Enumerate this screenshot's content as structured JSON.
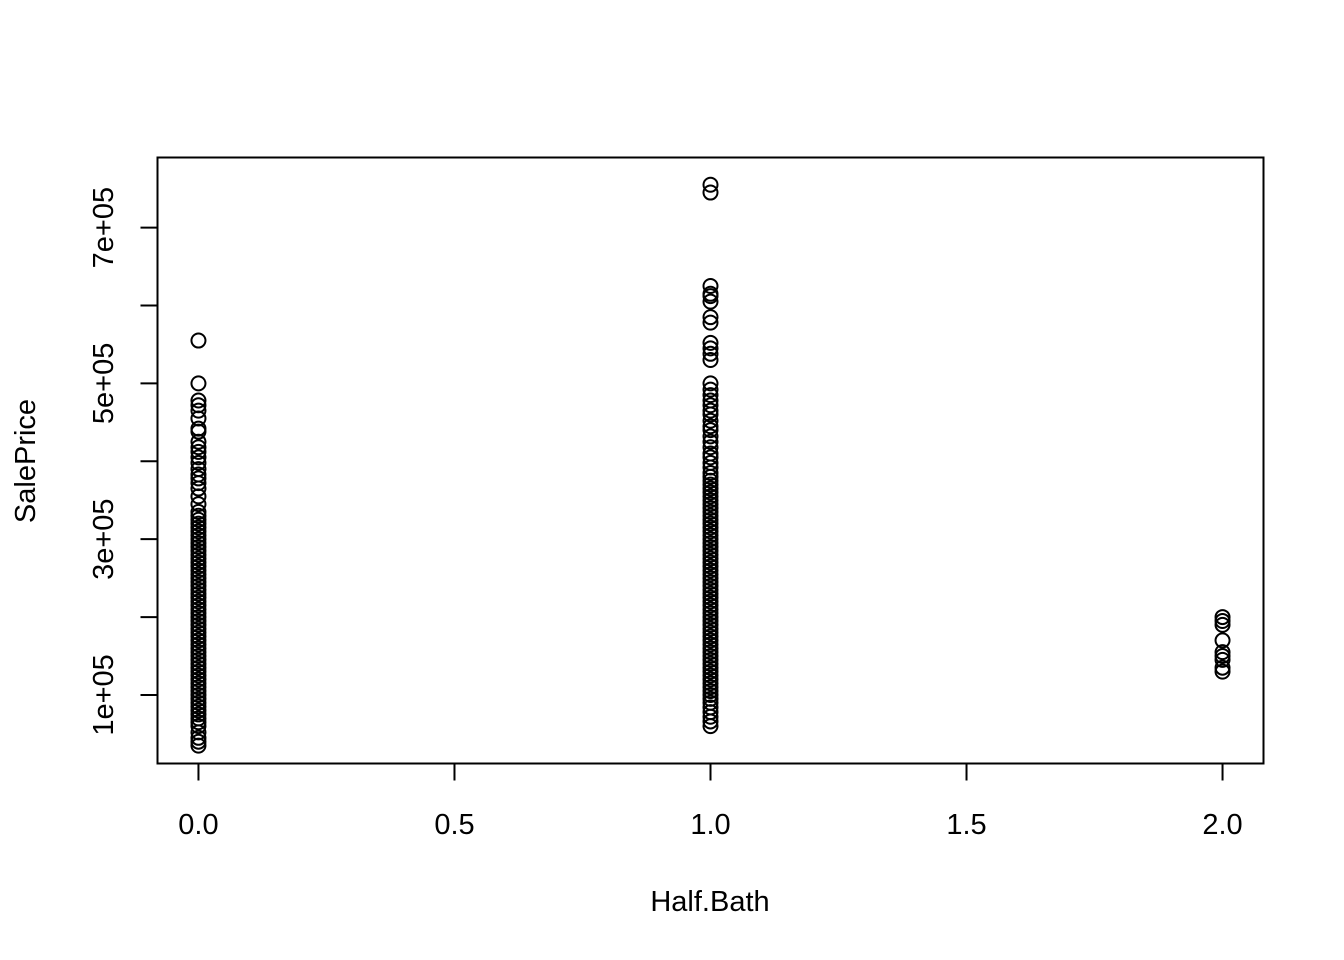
{
  "chart_data": {
    "type": "scatter",
    "title": "",
    "xlabel": "Half.Bath",
    "ylabel": "SalePrice",
    "xlim": [
      -0.08,
      2.08
    ],
    "ylim": [
      12000,
      790000
    ],
    "x_ticks": [
      0.0,
      0.5,
      1.0,
      1.5,
      2.0
    ],
    "x_tick_labels": [
      "0.0",
      "0.5",
      "1.0",
      "1.5",
      "2.0"
    ],
    "y_ticks": [
      100000,
      200000,
      300000,
      400000,
      500000,
      600000,
      700000
    ],
    "y_tick_labels": [
      "1e+05",
      "",
      "3e+05",
      "",
      "5e+05",
      "",
      "7e+05"
    ],
    "grid": false,
    "legend": "none",
    "series": [
      {
        "x_value": 0,
        "y_values": [
          35000,
          40000,
          45000,
          52000,
          60000,
          65000,
          70000,
          75000,
          80000,
          85000,
          90000,
          95000,
          100000,
          105000,
          110000,
          115000,
          120000,
          125000,
          130000,
          135000,
          140000,
          145000,
          150000,
          155000,
          160000,
          165000,
          170000,
          175000,
          180000,
          185000,
          190000,
          195000,
          200000,
          205000,
          210000,
          215000,
          220000,
          225000,
          230000,
          235000,
          240000,
          245000,
          250000,
          255000,
          260000,
          265000,
          270000,
          275000,
          280000,
          285000,
          290000,
          295000,
          300000,
          305000,
          310000,
          315000,
          320000,
          325000,
          330000,
          335000,
          345000,
          355000,
          365000,
          372000,
          378000,
          383000,
          390000,
          398000,
          405000,
          412000,
          418000,
          425000,
          438000,
          442000,
          455000,
          465000,
          472000,
          478000,
          500000,
          555000
        ]
      },
      {
        "x_value": 1,
        "y_values": [
          60000,
          66000,
          72000,
          78000,
          84000,
          90000,
          95000,
          100000,
          105000,
          110000,
          115000,
          120000,
          125000,
          130000,
          135000,
          140000,
          145000,
          150000,
          155000,
          160000,
          165000,
          170000,
          175000,
          180000,
          185000,
          190000,
          195000,
          200000,
          205000,
          210000,
          215000,
          220000,
          225000,
          230000,
          235000,
          240000,
          245000,
          250000,
          255000,
          260000,
          265000,
          270000,
          275000,
          280000,
          285000,
          290000,
          295000,
          300000,
          305000,
          310000,
          315000,
          320000,
          325000,
          330000,
          335000,
          340000,
          345000,
          350000,
          355000,
          360000,
          365000,
          370000,
          375000,
          380000,
          385000,
          392000,
          398000,
          405000,
          410000,
          418000,
          425000,
          432000,
          440000,
          445000,
          452000,
          460000,
          465000,
          472000,
          478000,
          485000,
          492000,
          500000,
          530000,
          538000,
          545000,
          552000,
          578000,
          585000,
          605000,
          612000,
          615000,
          625000,
          745000,
          755000
        ]
      },
      {
        "x_value": 2,
        "y_values": [
          130000,
          135000,
          145000,
          150000,
          155000,
          170000,
          190000,
          195000,
          200000
        ]
      }
    ]
  }
}
